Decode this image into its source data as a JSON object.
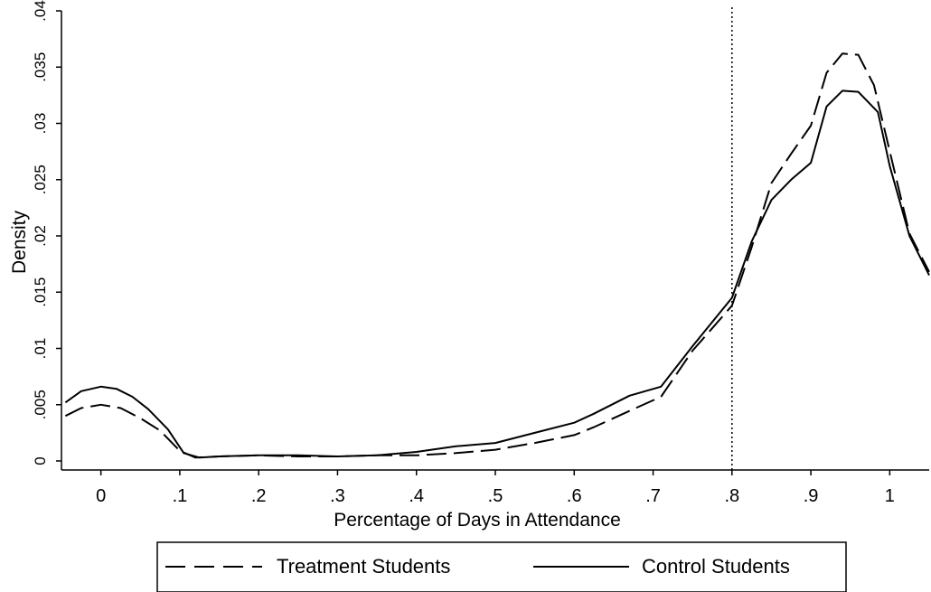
{
  "chart_data": {
    "type": "line",
    "title": "",
    "xlabel": "Percentage of Days in Attendance",
    "ylabel": "Density",
    "xlim": [
      -0.05,
      1.05
    ],
    "ylim": [
      0,
      0.04
    ],
    "x_ticks": [
      0,
      0.1,
      0.2,
      0.3,
      0.4,
      0.5,
      0.6,
      0.7,
      0.8,
      0.9,
      1
    ],
    "x_tick_labels": [
      "0",
      ".1",
      ".2",
      ".3",
      ".4",
      ".5",
      ".6",
      ".7",
      ".8",
      ".9",
      "1"
    ],
    "y_ticks": [
      0,
      0.005,
      0.01,
      0.015,
      0.02,
      0.025,
      0.03,
      0.035,
      0.04
    ],
    "y_tick_labels": [
      "0",
      ".005",
      ".01",
      ".015",
      ".02",
      ".025",
      ".03",
      ".035",
      ".04"
    ],
    "grid": false,
    "legend_position": "bottom",
    "reference_line": {
      "axis": "x",
      "value": 0.8,
      "style": "dotted"
    },
    "series": [
      {
        "name": "Treatment Students",
        "style": "dashed",
        "x": [
          -0.045,
          -0.025,
          0,
          0.025,
          0.05,
          0.075,
          0.1,
          0.12,
          0.15,
          0.2,
          0.25,
          0.3,
          0.35,
          0.4,
          0.45,
          0.5,
          0.55,
          0.6,
          0.625,
          0.675,
          0.71,
          0.75,
          0.8,
          0.825,
          0.85,
          0.875,
          0.9,
          0.92,
          0.94,
          0.96,
          0.98,
          1.0,
          1.025,
          1.05
        ],
        "values": [
          0.004,
          0.0047,
          0.005,
          0.0047,
          0.0038,
          0.0027,
          0.0009,
          0.0003,
          0.0004,
          0.0005,
          0.0004,
          0.0004,
          0.0005,
          0.0005,
          0.0007,
          0.001,
          0.0016,
          0.0023,
          0.003,
          0.0046,
          0.0057,
          0.0098,
          0.0138,
          0.019,
          0.0247,
          0.0273,
          0.0298,
          0.0345,
          0.0362,
          0.0361,
          0.0334,
          0.0275,
          0.0202,
          0.0168
        ]
      },
      {
        "name": "Control Students",
        "style": "solid",
        "x": [
          -0.045,
          -0.025,
          0,
          0.02,
          0.04,
          0.06,
          0.085,
          0.105,
          0.125,
          0.15,
          0.2,
          0.25,
          0.3,
          0.35,
          0.4,
          0.45,
          0.5,
          0.55,
          0.6,
          0.625,
          0.67,
          0.71,
          0.75,
          0.8,
          0.825,
          0.85,
          0.875,
          0.9,
          0.92,
          0.94,
          0.96,
          0.985,
          1.0,
          1.025,
          1.05
        ],
        "values": [
          0.0052,
          0.0062,
          0.0066,
          0.0064,
          0.0057,
          0.0046,
          0.0028,
          0.0007,
          0.0003,
          0.0004,
          0.0005,
          0.0005,
          0.0004,
          0.0005,
          0.0008,
          0.0013,
          0.0016,
          0.0025,
          0.0034,
          0.0042,
          0.0058,
          0.0066,
          0.0102,
          0.0145,
          0.0195,
          0.0232,
          0.025,
          0.0265,
          0.0315,
          0.0329,
          0.0328,
          0.031,
          0.0262,
          0.02,
          0.0165
        ]
      }
    ]
  }
}
